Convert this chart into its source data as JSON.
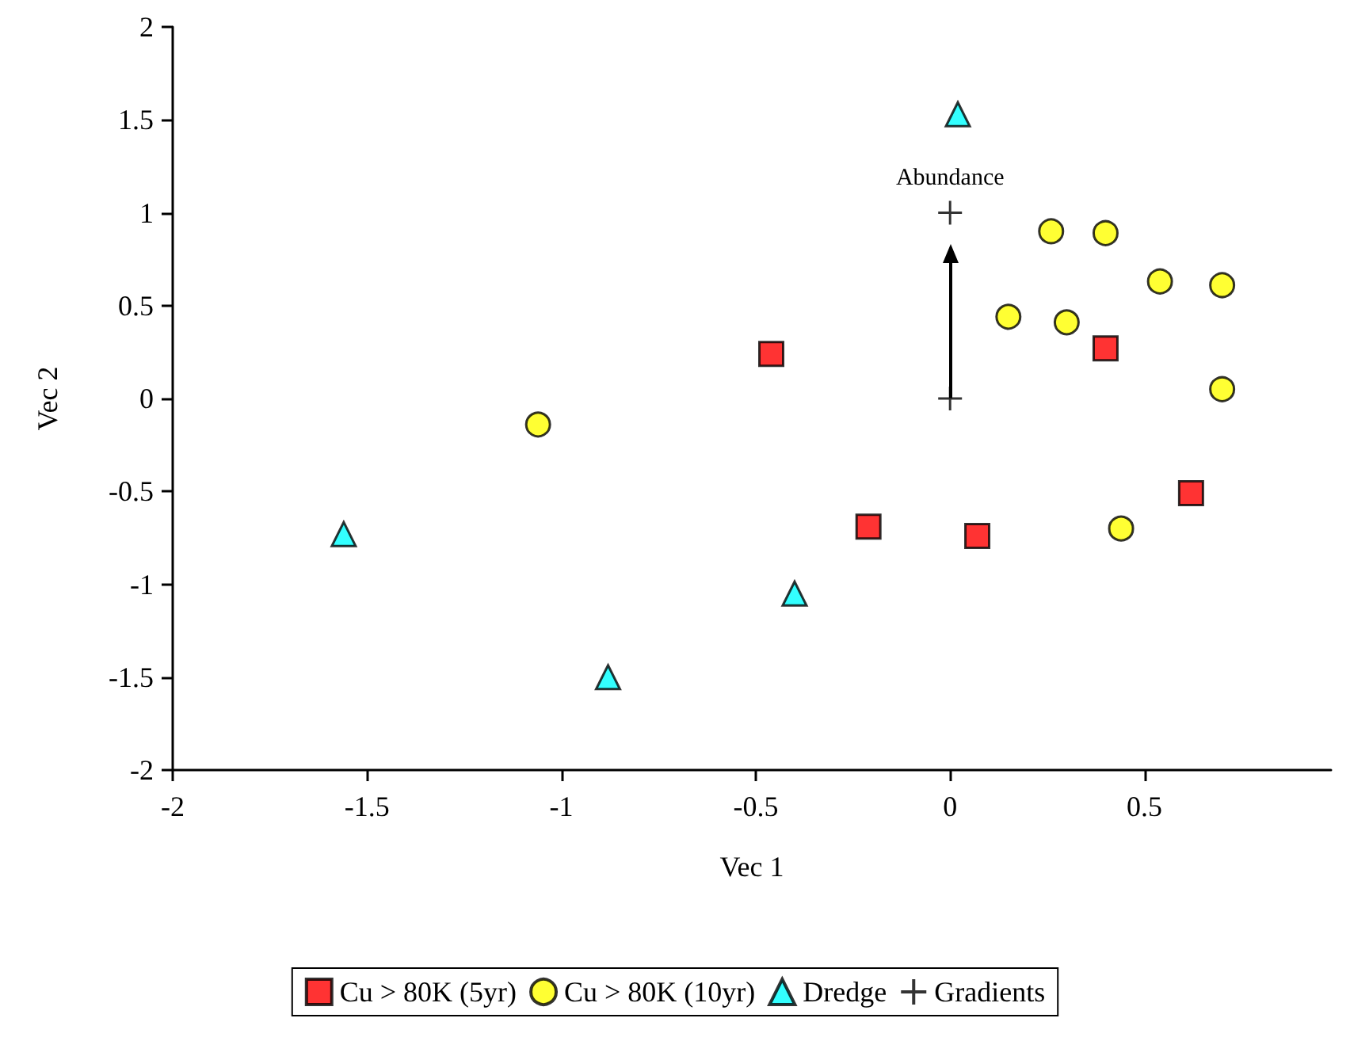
{
  "chart_data": {
    "type": "scatter",
    "xlabel": "Vec 1",
    "ylabel": "Vec 2",
    "xlim": [
      -2,
      0.98
    ],
    "xticks": [
      -2,
      -1.5,
      -1,
      -0.5,
      0,
      0.5
    ],
    "ylim": [
      -2,
      2
    ],
    "yticks": [
      -2,
      -1.5,
      -1,
      -0.5,
      0,
      0.5,
      1,
      1.5,
      2
    ],
    "grid": false,
    "legend": "bottom",
    "annotations": [
      {
        "text": "Abundance",
        "x": 0,
        "y": 1
      }
    ],
    "series": [
      {
        "name": "Cu > 80K (5yr)",
        "color": "#ff0000",
        "marker": "square",
        "x": [
          -0.46,
          0.4,
          -0.21,
          0.07,
          0.62
        ],
        "values": [
          0.24,
          0.27,
          -0.69,
          -0.74,
          -0.51
        ]
      },
      {
        "name": "Cu > 80K (10yr)",
        "color": "#ffff00",
        "marker": "circle",
        "x": [
          -1.06,
          0.26,
          0.4,
          0.54,
          0.7,
          0.15,
          0.3,
          0.7,
          0.44
        ],
        "values": [
          -0.14,
          0.9,
          0.89,
          0.63,
          0.61,
          0.44,
          0.41,
          0.05,
          -0.7
        ]
      },
      {
        "name": "Dredge",
        "color": "#00ffff",
        "marker": "triangle",
        "x": [
          -1.56,
          -0.88,
          0.02,
          -0.4
        ],
        "values": [
          -0.73,
          -1.5,
          1.53,
          -1.05
        ]
      },
      {
        "name": "Gradients",
        "color": "#000000",
        "marker": "cross",
        "x": [
          0,
          0
        ],
        "values": [
          0,
          1
        ]
      }
    ]
  }
}
